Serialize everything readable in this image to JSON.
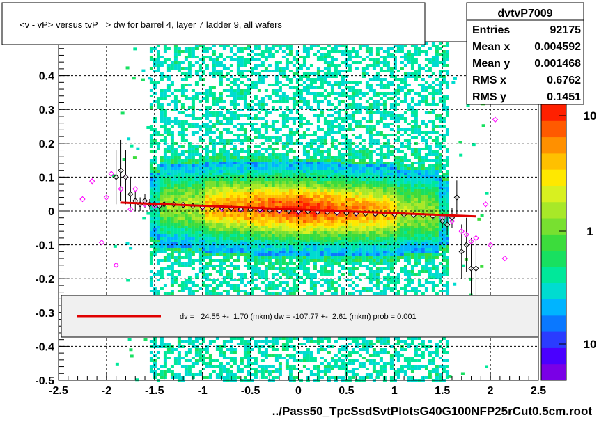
{
  "chart_data": {
    "type": "scatter",
    "title": "<v - vP>       versus  tvP =>  dw for barrel 4, layer 7 ladder 9, all wafers",
    "xlabel": "../Pass50_TpcSsdSvtPlotsG40G100NFP25rCut0.5cm.root",
    "ylabel": "",
    "xlim": [
      -2.5,
      2.5
    ],
    "ylim": [
      -0.5,
      0.5
    ],
    "x_ticks": [
      "-2.5",
      "-2",
      "-1.5",
      "-1",
      "-0.5",
      "0",
      "0.5",
      "1",
      "1.5",
      "2",
      "2.5"
    ],
    "y_ticks": [
      "-0.5",
      "-0.4",
      "-0.3",
      "-0.2",
      "-0.1",
      "0",
      "0.1",
      "0.2",
      "0.3",
      "0.4"
    ],
    "grid": true,
    "colorbar": {
      "labels": [
        "10",
        "1",
        "10"
      ],
      "colors": [
        "#7a00e6",
        "#4a00ff",
        "#2a3cff",
        "#0a78ff",
        "#00b4ff",
        "#00dcd0",
        "#00e89a",
        "#18e060",
        "#3cdc3c",
        "#78e030",
        "#a8e828",
        "#d8f020",
        "#ffe800",
        "#ffc000",
        "#ff9000",
        "#ff5a00",
        "#ff2000"
      ]
    },
    "stats": {
      "name": "dvtvP7009",
      "rows": [
        {
          "label": "Entries",
          "value": "92175"
        },
        {
          "label": "Mean x",
          "value": "0.004592"
        },
        {
          "label": "Mean y",
          "value": "0.001468"
        },
        {
          "label": "RMS x",
          "value": "0.6762"
        },
        {
          "label": "RMS y",
          "value": "0.1451"
        }
      ]
    },
    "fit_legend": "dv =   24.55 +-  1.70 (mkm) dw = -107.77 +-  2.61 (mkm) prob = 0.001",
    "fit_line": {
      "x": [
        -1.85,
        1.85
      ],
      "y": [
        0.025,
        -0.016
      ],
      "color": "#e00000"
    },
    "series": [
      {
        "marker": "black-open-diamond",
        "x": [
          -1.9,
          -1.85,
          -1.8,
          -1.75,
          -1.7,
          -1.65,
          -1.6,
          -1.55,
          -1.5,
          -1.45,
          -1.4,
          -1.3,
          -1.2,
          -1.1,
          -1.0,
          -0.9,
          -0.8,
          -0.7,
          -0.6,
          -0.5,
          -0.4,
          -0.3,
          -0.2,
          -0.1,
          0.0,
          0.1,
          0.2,
          0.3,
          0.4,
          0.5,
          0.6,
          0.7,
          0.8,
          0.9,
          1.0,
          1.1,
          1.2,
          1.3,
          1.4,
          1.5,
          1.55,
          1.6,
          1.65,
          1.7,
          1.75,
          1.8,
          1.85
        ],
        "y": [
          0.1,
          0.12,
          0.1,
          0.05,
          0.03,
          0.02,
          0.03,
          0.02,
          0.02,
          0.015,
          0.02,
          0.02,
          0.018,
          0.015,
          0.012,
          0.01,
          0.01,
          0.008,
          0.006,
          0.005,
          0.004,
          0.002,
          0.001,
          0.0,
          -0.001,
          -0.002,
          -0.003,
          -0.004,
          -0.005,
          -0.006,
          -0.007,
          -0.008,
          -0.009,
          -0.01,
          -0.01,
          -0.011,
          -0.012,
          -0.013,
          -0.015,
          -0.03,
          -0.04,
          -0.02,
          0.04,
          -0.12,
          -0.1,
          -0.17,
          -0.17
        ],
        "yerr": [
          0.08,
          0.09,
          0.08,
          0.05,
          0.03,
          0.02,
          0.02,
          0.015,
          0.01,
          0.01,
          0.008,
          0.006,
          0.005,
          0.004,
          0.004,
          0.003,
          0.003,
          0.003,
          0.003,
          0.003,
          0.003,
          0.003,
          0.003,
          0.003,
          0.003,
          0.003,
          0.003,
          0.003,
          0.003,
          0.003,
          0.003,
          0.003,
          0.004,
          0.004,
          0.005,
          0.006,
          0.008,
          0.01,
          0.015,
          0.02,
          0.03,
          0.03,
          0.05,
          0.08,
          0.08,
          0.09,
          0.09
        ]
      },
      {
        "marker": "magenta-open-diamond",
        "x": [
          -2.25,
          -2.15,
          -2.05,
          -2.0,
          -1.95,
          -1.9,
          -1.85,
          -1.8,
          -1.75,
          -1.7,
          -1.6,
          -1.5,
          -1.4,
          -1.2,
          -1.0,
          -0.8,
          -0.6,
          -0.4,
          -0.2,
          0.0,
          0.2,
          0.4,
          0.6,
          0.8,
          1.0,
          1.2,
          1.4,
          1.5,
          1.6,
          1.7,
          1.75,
          1.8,
          1.85,
          1.95,
          2.0,
          2.05,
          2.15
        ],
        "y": [
          0.035,
          0.088,
          -0.093,
          0.04,
          0.11,
          -0.16,
          0.065,
          0.1,
          0.005,
          0.065,
          0.02,
          0.015,
          0.02,
          0.018,
          0.01,
          0.006,
          0.003,
          0.001,
          -0.001,
          -0.003,
          -0.004,
          -0.006,
          -0.008,
          -0.009,
          -0.01,
          -0.012,
          -0.015,
          -0.02,
          -0.03,
          -0.06,
          -0.07,
          -0.09,
          -0.08,
          0.02,
          -0.1,
          0.27,
          -0.14
        ]
      }
    ]
  }
}
